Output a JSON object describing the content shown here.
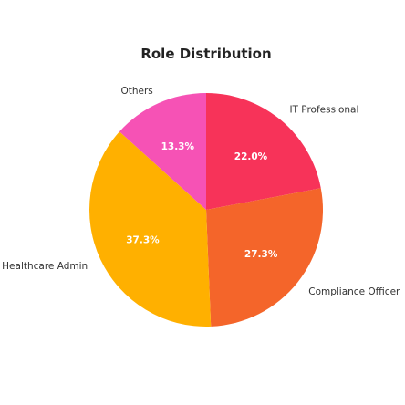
{
  "chart_data": {
    "type": "pie",
    "title": "Role Distribution",
    "slices": [
      {
        "label": "IT Professional",
        "value": 22.0,
        "pct_label": "22.0%",
        "color": "#f73359"
      },
      {
        "label": "Compliance Officer",
        "value": 27.3,
        "pct_label": "27.3%",
        "color": "#f4652a"
      },
      {
        "label": "Healthcare Admin",
        "value": 37.3,
        "pct_label": "37.3%",
        "color": "#ffb000"
      },
      {
        "label": "Others",
        "value": 13.3,
        "pct_label": "13.3%",
        "color": "#f652b5"
      }
    ],
    "start_angle_deg": 90,
    "direction": "clockwise"
  }
}
